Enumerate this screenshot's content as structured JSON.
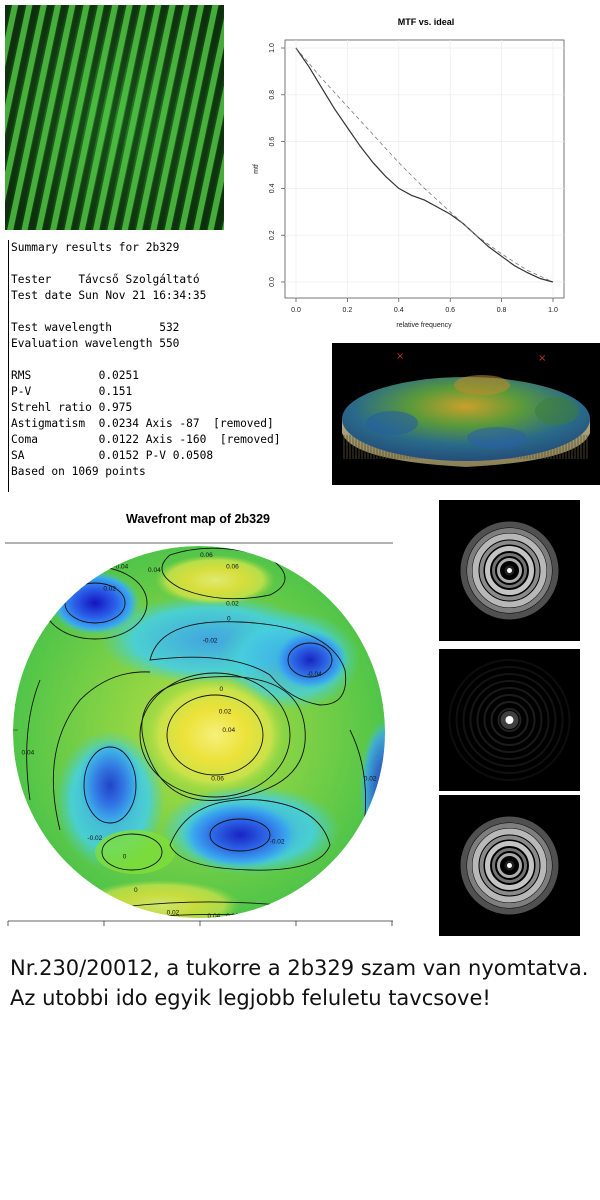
{
  "summary": {
    "title": "Summary results for 2b329",
    "tester_label": "Tester",
    "tester_value": "Távcső Szolgáltató",
    "test_date_label": "Test date",
    "test_date_value": "Sun Nov 21 16:34:35",
    "test_wavelength_label": "Test wavelength",
    "test_wavelength_value": "532",
    "eval_wavelength_label": "Evaluation wavelength",
    "eval_wavelength_value": "550",
    "rms_label": "RMS",
    "rms_value": "0.0251",
    "pv_label": "P-V",
    "pv_value": "0.151",
    "strehl_label": "Strehl ratio",
    "strehl_value": "0.975",
    "astig_label": "Astigmatism",
    "astig_value": "0.0234",
    "astig_axis": "Axis -87",
    "astig_note": "[removed]",
    "coma_label": "Coma",
    "coma_value": "0.0122",
    "coma_axis": "Axis -160",
    "coma_note": "[removed]",
    "sa_label": "SA",
    "sa_value": "0.0152",
    "sa_pv": "P-V 0.0508",
    "points_text": "Based on 1069 points"
  },
  "caption": {
    "line1": "Nr.230/20012, a tukorre a 2b329 szam van nyomtatva.",
    "line2": "Az utobbi ido egyik legjobb feluletu tavcsove!"
  },
  "chart_data": [
    {
      "type": "line",
      "title": "MTF vs. ideal",
      "xlabel": "relative frequency",
      "ylabel": "mtf",
      "xlim": [
        0,
        1
      ],
      "ylim": [
        0,
        1
      ],
      "x_ticks": [
        "0.0",
        "0.2",
        "0.4",
        "0.6",
        "0.8",
        "1.0"
      ],
      "y_ticks": [
        "0.0",
        "0.2",
        "0.4",
        "0.6",
        "0.8",
        "1.0"
      ],
      "grid": true,
      "series": [
        {
          "style": "solid",
          "color": "#333333",
          "x": [
            0.0,
            0.05,
            0.1,
            0.15,
            0.2,
            0.25,
            0.3,
            0.35,
            0.4,
            0.45,
            0.5,
            0.55,
            0.6,
            0.65,
            0.7,
            0.75,
            0.8,
            0.85,
            0.9,
            0.95,
            1.0
          ],
          "y": [
            1.0,
            0.92,
            0.83,
            0.74,
            0.66,
            0.58,
            0.51,
            0.45,
            0.4,
            0.37,
            0.35,
            0.32,
            0.29,
            0.25,
            0.2,
            0.15,
            0.11,
            0.07,
            0.04,
            0.015,
            0.0
          ]
        },
        {
          "style": "dashed",
          "color": "#777777",
          "x": [
            0.0,
            0.1,
            0.2,
            0.3,
            0.4,
            0.5,
            0.6,
            0.7,
            0.8,
            0.9,
            1.0
          ],
          "y": [
            1.0,
            0.87,
            0.75,
            0.63,
            0.51,
            0.4,
            0.3,
            0.2,
            0.12,
            0.05,
            0.0
          ]
        }
      ]
    },
    {
      "type": "heatmap",
      "title": "Wavefront map of 2b329",
      "contour_labels": [
        {
          "text": "0.06",
          "u": 0.52,
          "v": 0.03
        },
        {
          "text": "0.04",
          "u": 0.38,
          "v": 0.07
        },
        {
          "text": "0.02",
          "u": 0.59,
          "v": 0.16
        },
        {
          "text": "0.06",
          "u": 0.59,
          "v": 0.06
        },
        {
          "text": "0",
          "u": 0.58,
          "v": 0.2
        },
        {
          "text": "0.02",
          "u": 0.26,
          "v": 0.12
        },
        {
          "text": "-0.02",
          "u": 0.53,
          "v": 0.26
        },
        {
          "text": "-0.04",
          "u": 0.29,
          "v": 0.06
        },
        {
          "text": "-0.04",
          "u": 0.81,
          "v": 0.35
        },
        {
          "text": "0",
          "u": 0.56,
          "v": 0.39
        },
        {
          "text": "0.02",
          "u": 0.57,
          "v": 0.45
        },
        {
          "text": "0.04",
          "u": 0.58,
          "v": 0.5
        },
        {
          "text": "0.06",
          "u": 0.55,
          "v": 0.63
        },
        {
          "text": "0.04",
          "u": 0.04,
          "v": 0.56
        },
        {
          "text": "0.02",
          "u": 0.96,
          "v": 0.63
        },
        {
          "text": "-0.02",
          "u": 0.22,
          "v": 0.79
        },
        {
          "text": "-0.02",
          "u": 0.71,
          "v": 0.8
        },
        {
          "text": "0",
          "u": 0.3,
          "v": 0.84
        },
        {
          "text": "0",
          "u": 0.33,
          "v": 0.93
        },
        {
          "text": "0.02",
          "u": 0.43,
          "v": 0.99
        },
        {
          "text": "0.04",
          "u": 0.54,
          "v": 1.0
        },
        {
          "text": "0.06",
          "u": 0.59,
          "v": 1.0
        }
      ]
    }
  ]
}
